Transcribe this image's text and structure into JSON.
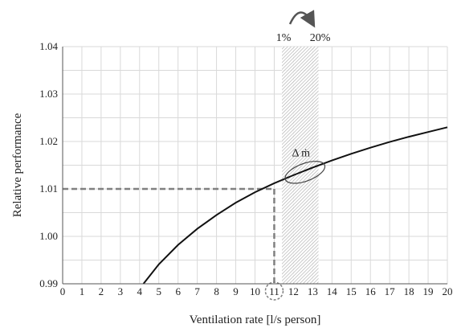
{
  "chart_data": {
    "type": "line",
    "title": "",
    "xlabel": "Ventilation rate [l/s person]",
    "ylabel": "Relative performance",
    "xlim": [
      0,
      20
    ],
    "ylim": [
      0.99,
      1.04
    ],
    "x_ticks": [
      0,
      1,
      2,
      3,
      4,
      5,
      6,
      7,
      8,
      9,
      10,
      11,
      12,
      13,
      14,
      15,
      16,
      17,
      18,
      19,
      20
    ],
    "y_ticks": [
      0.99,
      1.0,
      1.01,
      1.02,
      1.03,
      1.04
    ],
    "y_tick_labels": [
      "0.99",
      "1.00",
      "1.01",
      "1.02",
      "1.03",
      "1.04"
    ],
    "grid": true,
    "series": [
      {
        "x": [
          4.2,
          5,
          6,
          7,
          8,
          9,
          10,
          11,
          12,
          13,
          14,
          15,
          16,
          17,
          18,
          19,
          20
        ],
        "y": [
          0.99,
          0.9941,
          0.9982,
          1.0016,
          1.0045,
          1.0071,
          1.0093,
          1.0112,
          1.0129,
          1.0145,
          1.016,
          1.0174,
          1.0187,
          1.0199,
          1.021,
          1.022,
          1.023
        ]
      }
    ],
    "reference_point": {
      "x": 11,
      "y": 1.01
    },
    "shaded_band": {
      "x_start": 11.4,
      "x_end": 13.3,
      "labels": [
        "1%",
        "20%"
      ]
    },
    "annotation": {
      "text": "Δ ṁ",
      "x": 12.6,
      "y": 1.0135
    },
    "colors": {
      "curve": "#111111",
      "dashed": "#808080",
      "grid": "#d9d9d9",
      "band": "#b5b5b5"
    }
  }
}
